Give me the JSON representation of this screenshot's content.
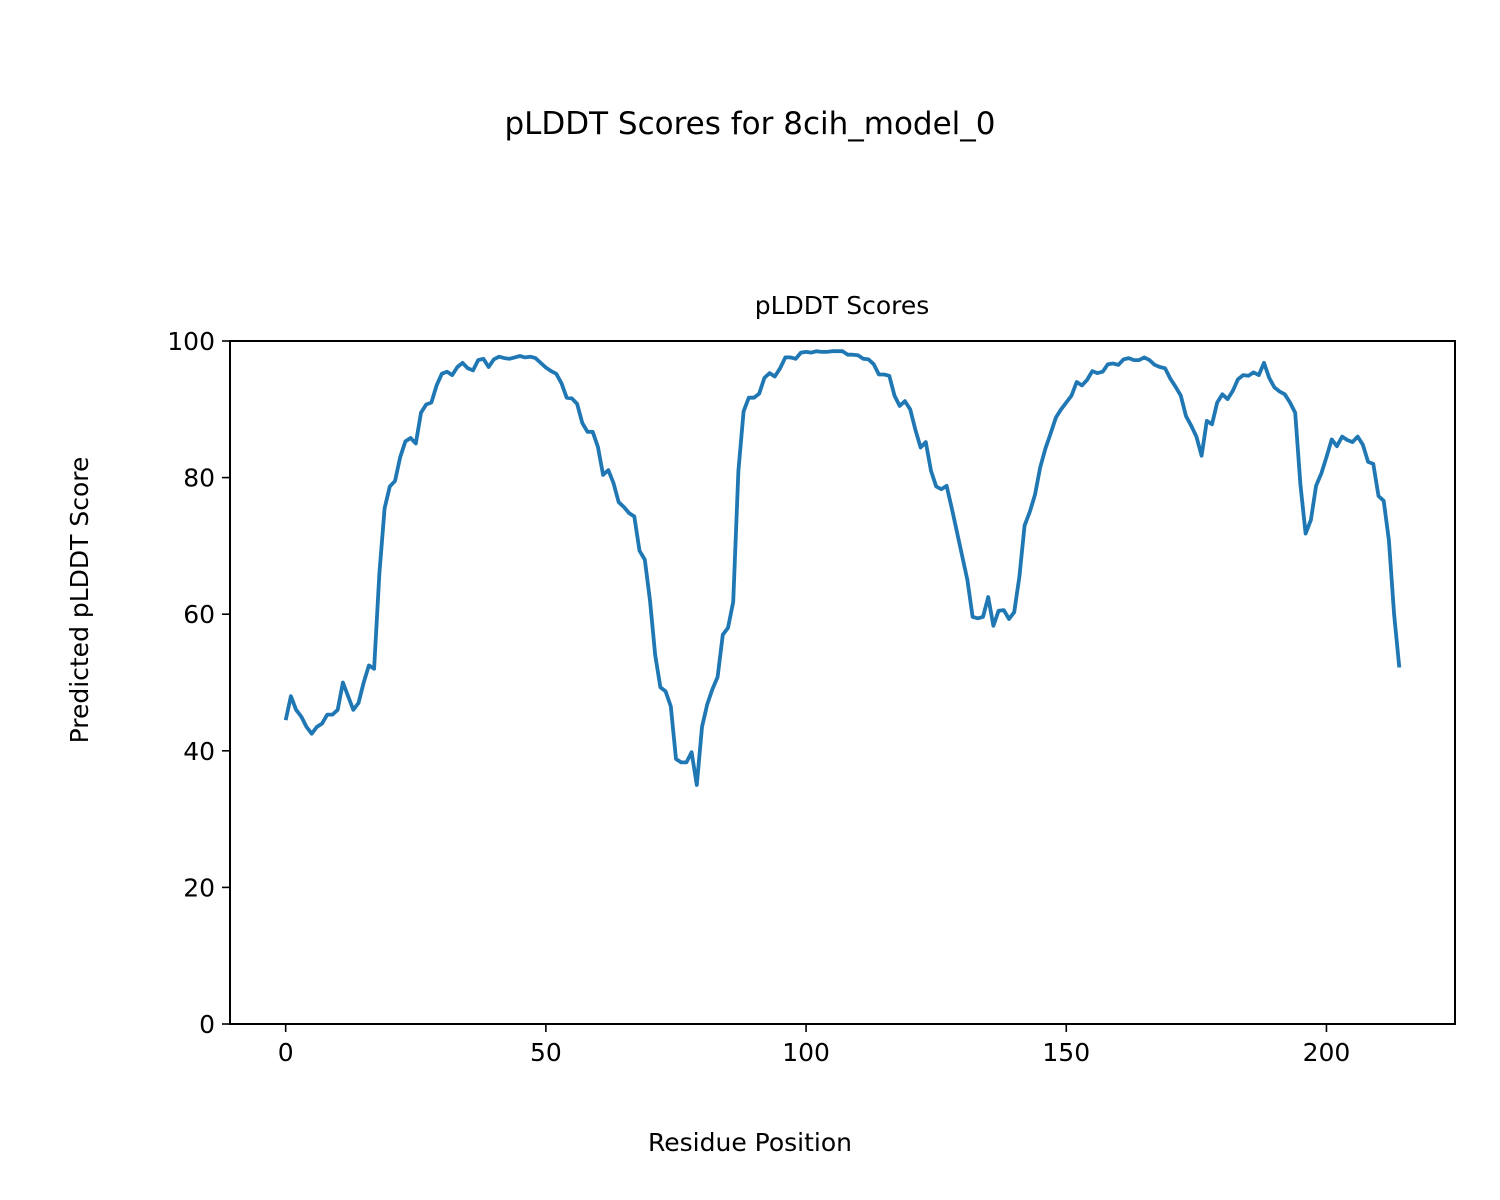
{
  "figure_title": "pLDDT Scores for 8cih_model_0",
  "chart_data": {
    "type": "line",
    "title": "pLDDT Scores",
    "xlabel": "Residue Position",
    "ylabel": "Predicted pLDDT Score",
    "xlim": [
      -10.7,
      224.7
    ],
    "ylim": [
      0,
      100
    ],
    "xticks": [
      0,
      50,
      100,
      150,
      200
    ],
    "yticks": [
      0,
      20,
      40,
      60,
      80,
      100
    ],
    "grid": false,
    "line_color": "#1f77b4",
    "x_start": 0,
    "values": [
      44.5,
      48,
      46,
      45,
      43.5,
      42.5,
      43.5,
      44,
      45.3,
      45.3,
      46,
      50,
      48,
      46,
      47,
      50,
      52.5,
      52,
      66,
      75.5,
      78.7,
      79.5,
      83,
      85.3,
      85.8,
      85,
      89.5,
      90.7,
      91,
      93.5,
      95.2,
      95.5,
      95,
      96.2,
      96.8,
      96,
      95.7,
      97.2,
      97.4,
      96.2,
      97.3,
      97.7,
      97.5,
      97.4,
      97.6,
      97.8,
      97.6,
      97.7,
      97.5,
      96.8,
      96.1,
      95.6,
      95.2,
      93.8,
      91.7,
      91.6,
      90.8,
      88,
      86.7,
      86.7,
      84.5,
      80.4,
      81.1,
      79.2,
      76.4,
      75.7,
      74.8,
      74.3,
      69.3,
      68,
      62,
      54,
      49.3,
      48.7,
      46.5,
      38.8,
      38.3,
      38.3,
      39.8,
      35,
      43.5,
      46.8,
      49,
      50.8,
      57,
      58,
      61.8,
      81,
      89.7,
      91.7,
      91.7,
      92.3,
      94.6,
      95.3,
      94.8,
      96,
      97.6,
      97.6,
      97.4,
      98.3,
      98.4,
      98.3,
      98.5,
      98.4,
      98.4,
      98.5,
      98.5,
      98.5,
      98,
      98,
      97.9,
      97.4,
      97.3,
      96.6,
      95.1,
      95.1,
      94.9,
      92,
      90.5,
      91.2,
      90,
      87,
      84.4,
      85.2,
      81,
      78.7,
      78.3,
      78.8,
      75.5,
      72,
      68.5,
      65,
      59.6,
      59.4,
      59.6,
      62.5,
      58.3,
      60.5,
      60.6,
      59.3,
      60.3,
      65.5,
      73,
      75,
      77.5,
      81.5,
      84.3,
      86.5,
      88.8,
      90,
      91,
      92,
      94,
      93.5,
      94.3,
      95.6,
      95.3,
      95.5,
      96.6,
      96.7,
      96.5,
      97.3,
      97.5,
      97.2,
      97.2,
      97.6,
      97.2,
      96.5,
      96.2,
      96,
      94.5,
      93.3,
      92,
      89,
      87.6,
      86,
      83.2,
      88.3,
      87.8,
      91,
      92.2,
      91.5,
      92.7,
      94.4,
      95,
      94.9,
      95.4,
      95,
      96.8,
      94.6,
      93.2,
      92.6,
      92.2,
      91,
      89.5,
      79,
      71.8,
      73.8,
      78.8,
      80.6,
      83,
      85.6,
      84.6,
      86,
      85.5,
      85.2,
      86,
      84.8,
      82.3,
      82,
      77.3,
      76.6,
      70.8,
      60,
      52.2
    ]
  }
}
